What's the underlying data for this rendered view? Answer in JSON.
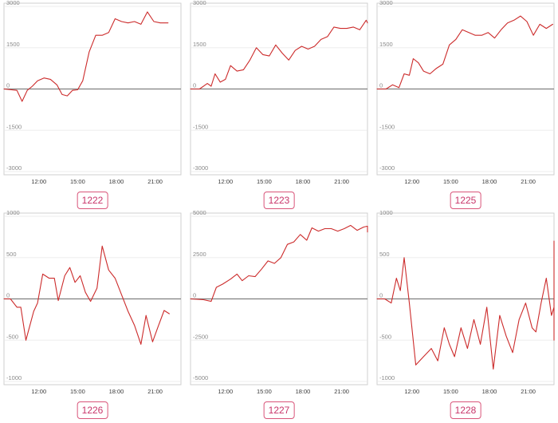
{
  "chart_data": [
    {
      "type": "line",
      "label": "1222",
      "y_ticks": [
        3000,
        1500,
        0,
        -1500,
        -3000
      ],
      "ylim": [
        -3000,
        3000
      ],
      "x_ticks": [
        "12:00",
        "15:00",
        "18:00",
        "21:00"
      ],
      "x_hours": [
        9.3,
        23.0
      ],
      "series": [
        {
          "values": [
            [
              9.3,
              0
            ],
            [
              10.3,
              -50
            ],
            [
              10.7,
              -450
            ],
            [
              11.1,
              -50
            ],
            [
              11.5,
              100
            ],
            [
              11.9,
              300
            ],
            [
              12.4,
              400
            ],
            [
              12.9,
              350
            ],
            [
              13.4,
              150
            ],
            [
              13.8,
              -200
            ],
            [
              14.2,
              -250
            ],
            [
              14.6,
              -50
            ],
            [
              15.0,
              -30
            ],
            [
              15.4,
              300
            ],
            [
              15.9,
              1350
            ],
            [
              16.4,
              1950
            ],
            [
              16.9,
              1950
            ],
            [
              17.4,
              2050
            ],
            [
              17.9,
              2550
            ],
            [
              18.4,
              2450
            ],
            [
              18.9,
              2400
            ],
            [
              19.4,
              2450
            ],
            [
              19.9,
              2350
            ],
            [
              20.4,
              2800
            ],
            [
              20.9,
              2450
            ],
            [
              21.4,
              2400
            ],
            [
              22.0,
              2400
            ]
          ]
        }
      ]
    },
    {
      "type": "line",
      "label": "1223",
      "y_ticks": [
        3000,
        1500,
        0,
        -1500,
        -3000
      ],
      "ylim": [
        -3000,
        3000
      ],
      "x_ticks": [
        "12:00",
        "15:00",
        "18:00",
        "21:00"
      ],
      "x_hours": [
        9.3,
        23.0
      ],
      "series": [
        {
          "values": [
            [
              9.3,
              0
            ],
            [
              10.0,
              0
            ],
            [
              10.6,
              200
            ],
            [
              10.9,
              100
            ],
            [
              11.2,
              550
            ],
            [
              11.6,
              250
            ],
            [
              12.0,
              350
            ],
            [
              12.4,
              850
            ],
            [
              12.9,
              650
            ],
            [
              13.4,
              700
            ],
            [
              13.9,
              1050
            ],
            [
              14.4,
              1500
            ],
            [
              14.9,
              1250
            ],
            [
              15.4,
              1200
            ],
            [
              15.9,
              1600
            ],
            [
              16.4,
              1300
            ],
            [
              16.9,
              1050
            ],
            [
              17.4,
              1400
            ],
            [
              17.9,
              1550
            ],
            [
              18.4,
              1450
            ],
            [
              18.9,
              1550
            ],
            [
              19.4,
              1800
            ],
            [
              19.9,
              1900
            ],
            [
              20.4,
              2250
            ],
            [
              20.9,
              2200
            ],
            [
              21.4,
              2200
            ],
            [
              21.9,
              2250
            ],
            [
              22.4,
              2150
            ],
            [
              22.9,
              2500
            ],
            [
              23.4,
              2400
            ]
          ]
        }
      ]
    },
    {
      "type": "line",
      "label": "1225",
      "y_ticks": [
        3000,
        1500,
        0,
        -1500,
        -3000
      ],
      "ylim": [
        -3000,
        3000
      ],
      "x_ticks": [
        "12:00",
        "15:00",
        "18:00",
        "21:00"
      ],
      "x_hours": [
        9.3,
        23.0
      ],
      "series": [
        {
          "values": [
            [
              9.3,
              0
            ],
            [
              10.0,
              0
            ],
            [
              10.5,
              150
            ],
            [
              11.0,
              50
            ],
            [
              11.4,
              550
            ],
            [
              11.8,
              500
            ],
            [
              12.1,
              1100
            ],
            [
              12.5,
              950
            ],
            [
              12.9,
              650
            ],
            [
              13.4,
              550
            ],
            [
              13.9,
              750
            ],
            [
              14.4,
              900
            ],
            [
              14.9,
              1600
            ],
            [
              15.4,
              1800
            ],
            [
              15.9,
              2150
            ],
            [
              16.4,
              2050
            ],
            [
              16.9,
              1950
            ],
            [
              17.4,
              1950
            ],
            [
              17.9,
              2050
            ],
            [
              18.4,
              1850
            ],
            [
              18.9,
              2150
            ],
            [
              19.4,
              2400
            ],
            [
              19.9,
              2500
            ],
            [
              20.4,
              2650
            ],
            [
              20.9,
              2450
            ],
            [
              21.4,
              1950
            ],
            [
              21.9,
              2350
            ],
            [
              22.4,
              2200
            ],
            [
              22.9,
              2350
            ]
          ]
        }
      ]
    },
    {
      "type": "line",
      "label": "1226",
      "y_ticks": [
        1000,
        500,
        0,
        -500,
        -1000
      ],
      "ylim": [
        -1000,
        1000
      ],
      "x_ticks": [
        "12:00",
        "15:00",
        "18:00",
        "21:00"
      ],
      "x_hours": [
        9.3,
        23.0
      ],
      "series": [
        {
          "values": [
            [
              9.3,
              0
            ],
            [
              9.8,
              0
            ],
            [
              10.3,
              -100
            ],
            [
              10.6,
              -100
            ],
            [
              11.0,
              -500
            ],
            [
              11.6,
              -150
            ],
            [
              11.9,
              -50
            ],
            [
              12.3,
              300
            ],
            [
              12.8,
              250
            ],
            [
              13.2,
              250
            ],
            [
              13.5,
              -20
            ],
            [
              14.0,
              280
            ],
            [
              14.4,
              380
            ],
            [
              14.8,
              200
            ],
            [
              15.2,
              280
            ],
            [
              15.6,
              80
            ],
            [
              16.0,
              -30
            ],
            [
              16.5,
              130
            ],
            [
              16.9,
              640
            ],
            [
              17.4,
              350
            ],
            [
              17.9,
              250
            ],
            [
              18.4,
              50
            ],
            [
              18.9,
              -150
            ],
            [
              19.4,
              -320
            ],
            [
              19.9,
              -550
            ],
            [
              20.3,
              -200
            ],
            [
              20.8,
              -520
            ],
            [
              21.2,
              -350
            ],
            [
              21.7,
              -140
            ],
            [
              22.1,
              -180
            ]
          ]
        }
      ]
    },
    {
      "type": "line",
      "label": "1227",
      "y_ticks": [
        5000,
        2500,
        0,
        -2500,
        -5000
      ],
      "ylim": [
        -5000,
        5000
      ],
      "x_ticks": [
        "12:00",
        "15:00",
        "18:00",
        "21:00"
      ],
      "x_hours": [
        9.3,
        23.0
      ],
      "series": [
        {
          "values": [
            [
              9.3,
              0
            ],
            [
              10.3,
              -50
            ],
            [
              10.9,
              -150
            ],
            [
              11.3,
              700
            ],
            [
              11.8,
              900
            ],
            [
              12.4,
              1200
            ],
            [
              12.9,
              1500
            ],
            [
              13.3,
              1100
            ],
            [
              13.8,
              1400
            ],
            [
              14.3,
              1350
            ],
            [
              14.8,
              1800
            ],
            [
              15.3,
              2300
            ],
            [
              15.8,
              2150
            ],
            [
              16.3,
              2500
            ],
            [
              16.8,
              3300
            ],
            [
              17.3,
              3450
            ],
            [
              17.8,
              3900
            ],
            [
              18.3,
              3550
            ],
            [
              18.7,
              4300
            ],
            [
              19.2,
              4100
            ],
            [
              19.7,
              4250
            ],
            [
              20.2,
              4250
            ],
            [
              20.7,
              4100
            ],
            [
              21.2,
              4250
            ],
            [
              21.7,
              4450
            ],
            [
              22.2,
              4150
            ],
            [
              22.7,
              4350
            ],
            [
              23.2,
              4400
            ],
            [
              23.7,
              4050
            ]
          ]
        }
      ]
    },
    {
      "type": "line",
      "label": "1228",
      "y_ticks": [
        1000,
        500,
        0,
        -500,
        -1000
      ],
      "ylim": [
        -1000,
        1000
      ],
      "x_ticks": [
        "12:00",
        "15:00",
        "18:00",
        "21:00"
      ],
      "x_hours": [
        9.3,
        23.0
      ],
      "series": [
        {
          "values": [
            [
              9.3,
              0
            ],
            [
              9.9,
              0
            ],
            [
              10.4,
              -50
            ],
            [
              10.8,
              250
            ],
            [
              11.1,
              100
            ],
            [
              11.4,
              500
            ],
            [
              11.8,
              -50
            ],
            [
              12.3,
              -800
            ],
            [
              12.9,
              -700
            ],
            [
              13.5,
              -600
            ],
            [
              14.0,
              -750
            ],
            [
              14.5,
              -350
            ],
            [
              14.9,
              -550
            ],
            [
              15.3,
              -700
            ],
            [
              15.8,
              -350
            ],
            [
              16.3,
              -600
            ],
            [
              16.8,
              -250
            ],
            [
              17.3,
              -550
            ],
            [
              17.8,
              -100
            ],
            [
              18.3,
              -850
            ],
            [
              18.8,
              -200
            ],
            [
              19.3,
              -450
            ],
            [
              19.8,
              -650
            ],
            [
              20.3,
              -250
            ],
            [
              20.8,
              -50
            ],
            [
              21.3,
              -350
            ],
            [
              21.6,
              -400
            ],
            [
              22.0,
              -50
            ],
            [
              22.4,
              250
            ],
            [
              22.8,
              -200
            ],
            [
              23.2,
              -100
            ],
            [
              23.5,
              -500
            ],
            [
              23.8,
              700
            ]
          ]
        }
      ]
    }
  ]
}
